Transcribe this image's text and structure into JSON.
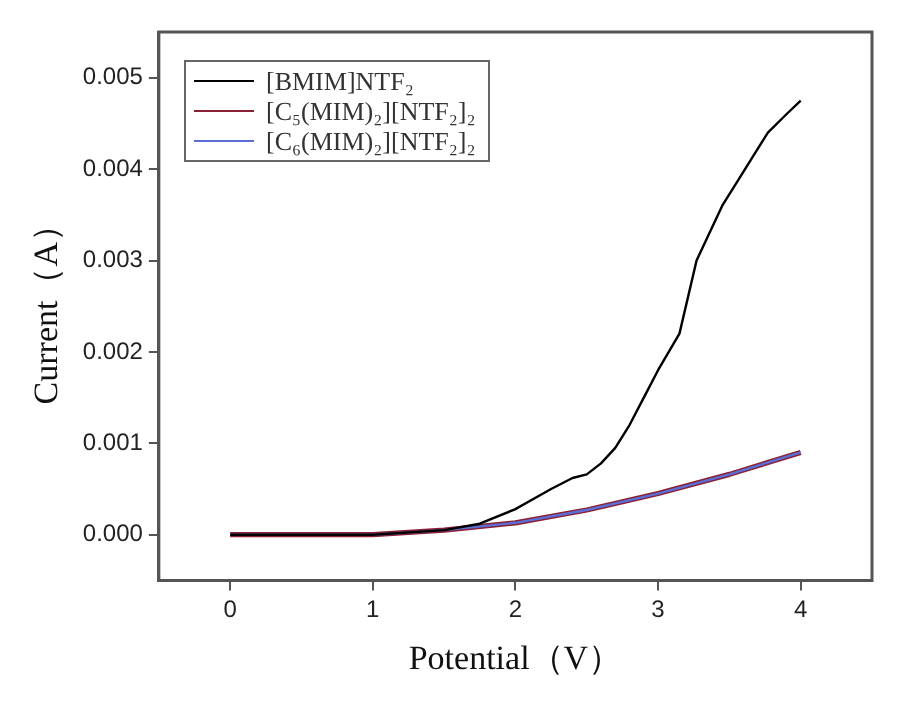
{
  "chart_data": {
    "type": "line",
    "xlabel": "Potential（V）",
    "ylabel": "Current（A）",
    "xlim": [
      -0.5,
      4.5
    ],
    "xticks": [
      0,
      1,
      2,
      3,
      4
    ],
    "ylim": [
      -0.0005,
      0.0055
    ],
    "yticks": [
      {
        "value": 0,
        "label": "0.000"
      },
      {
        "value": 0.001,
        "label": "0.001"
      },
      {
        "value": 0.002,
        "label": "0.002"
      },
      {
        "value": 0.003,
        "label": "0.003"
      },
      {
        "value": 0.004,
        "label": "0.004"
      },
      {
        "value": 0.005,
        "label": "0.005"
      }
    ],
    "grid": false,
    "legend": "top left",
    "marker": "none",
    "line_style": "solid",
    "series": [
      {
        "name": "[BMIM]NTF₂",
        "color": "#000000",
        "x": [
          0,
          1,
          1.5,
          1.75,
          2.0,
          2.25,
          2.4,
          2.5,
          2.6,
          2.7,
          2.8,
          2.9,
          3.0,
          3.15,
          3.27,
          3.45,
          3.61,
          3.77,
          3.9,
          4.0
        ],
        "values": [
          0,
          0,
          5e-05,
          0.00012,
          0.00028,
          0.0005,
          0.00062,
          0.00066,
          0.00078,
          0.00095,
          0.0012,
          0.0015,
          0.0018,
          0.0022,
          0.003,
          0.0036,
          0.004,
          0.0044,
          0.0046,
          0.00475
        ]
      },
      {
        "name": "[C₅(MIM)₂][NTF₂]₂",
        "color": "#8b2035",
        "x": [
          0,
          1,
          1.5,
          2.0,
          2.5,
          3.0,
          3.5,
          4.0
        ],
        "values": [
          0,
          0,
          5e-05,
          0.00013,
          0.00027,
          0.00045,
          0.00066,
          0.0009
        ]
      },
      {
        "name": "[C₆(MIM)₂][NTF₂]₂",
        "color": "#5a6fd6",
        "x": [
          0,
          1,
          1.5,
          2.0,
          2.5,
          3.0,
          3.5,
          4.0
        ],
        "values": [
          0,
          0,
          5e-05,
          0.00013,
          0.00027,
          0.00045,
          0.00066,
          0.0009
        ]
      }
    ]
  }
}
